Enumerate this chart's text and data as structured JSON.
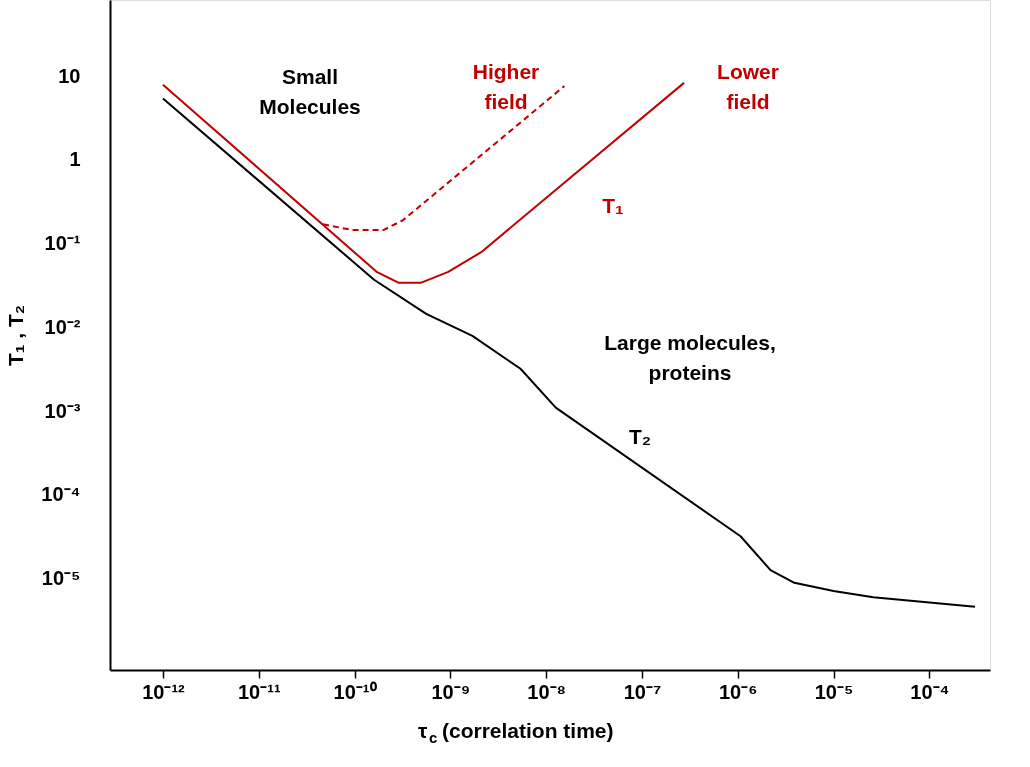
{
  "chart_data": {
    "type": "line",
    "xlabel": "τ$_{c}$ (correlation time)",
    "ylabel": "T₁ , T₂",
    "log": "xy",
    "grid": false,
    "marker": "none",
    "xlim": [
      2.8e-13,
      0.00043
    ],
    "ylim": [
      8.1e-07,
      81
    ],
    "xticks": [
      {
        "value": 1e-12,
        "label": "10⁻¹²"
      },
      {
        "value": 1e-11,
        "label": "10⁻¹¹"
      },
      {
        "value": 1e-10,
        "label": "10⁻¹⁰"
      },
      {
        "value": 1e-09,
        "label": "10⁻⁹"
      },
      {
        "value": 1e-08,
        "label": "10⁻⁸"
      },
      {
        "value": 1e-07,
        "label": "10⁻⁷"
      },
      {
        "value": 1e-06,
        "label": "10⁻⁶"
      },
      {
        "value": 1e-05,
        "label": "10⁻⁵"
      },
      {
        "value": 0.0001,
        "label": "10⁻⁴"
      }
    ],
    "yticks": [
      {
        "value": 1e-05,
        "label": "10⁻⁵"
      },
      {
        "value": 0.0001,
        "label": "10⁻⁴"
      },
      {
        "value": 0.001,
        "label": "10⁻³"
      },
      {
        "value": 0.01,
        "label": "10⁻²"
      },
      {
        "value": 0.1,
        "label": "10⁻¹"
      },
      1,
      10
    ],
    "series": [
      {
        "name": "T₂",
        "color": "#000000",
        "line_style": "solid",
        "x": [
          1e-12,
          1.6e-10,
          5.6e-10,
          1.7e-09,
          5.4e-09,
          1.26e-08,
          1.07e-06,
          2.2e-06,
          3.9e-06,
          1e-05,
          2.6e-05,
          0.0003
        ],
        "values": [
          5.4,
          0.037,
          0.0145,
          0.0079,
          0.0032,
          0.0011,
          3.2e-05,
          1.26e-05,
          8.9e-06,
          7.1e-06,
          6e-06,
          4.6e-06
        ]
      },
      {
        "name": "Lower\nfield",
        "color": "#c00000",
        "line_style": "solid",
        "x": [
          1e-12,
          1.7e-10,
          2.9e-10,
          4.9e-10,
          9.5e-10,
          2.1e-09,
          2.75e-07
        ],
        "values": [
          7.9,
          0.046,
          0.034,
          0.034,
          0.046,
          0.079,
          8.3
        ]
      },
      {
        "name": "Higher\nfield",
        "color": "#c00000",
        "line_style": "dashed",
        "x": [
          4.7e-11,
          9.5e-11,
          2e-10,
          3.2e-10,
          1.55e-08
        ],
        "values": [
          0.17,
          0.145,
          0.145,
          0.19,
          7.6
        ]
      }
    ],
    "annotations": [
      "Small\nMolecules",
      "T₁",
      "Large molecules,\nproteins"
    ]
  }
}
